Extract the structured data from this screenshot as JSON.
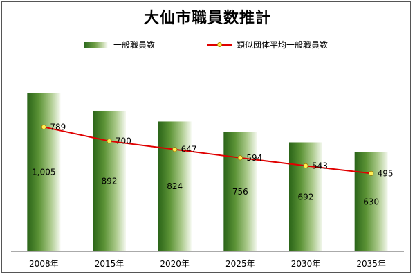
{
  "chart_data": {
    "type": "bar",
    "title": "大仙市職員数推計",
    "categories": [
      "2008年",
      "2015年",
      "2020年",
      "2025年",
      "2030年",
      "2035年"
    ],
    "series": [
      {
        "name": "一般職員数",
        "type": "bar",
        "values": [
          1005,
          892,
          824,
          756,
          692,
          630
        ],
        "labels": [
          "1,005",
          "892",
          "824",
          "756",
          "692",
          "630"
        ],
        "color": "#4d8a2e"
      },
      {
        "name": "類似団体平均一般職員数",
        "type": "line",
        "values": [
          789,
          700,
          647,
          594,
          543,
          495
        ],
        "labels": [
          "789",
          "700",
          "647",
          "594",
          "543",
          "495"
        ],
        "color": "#e00000",
        "marker_color": "#ffee55"
      }
    ],
    "ylim": [
      0,
      1000
    ],
    "grid": false,
    "legend_position": "top"
  }
}
